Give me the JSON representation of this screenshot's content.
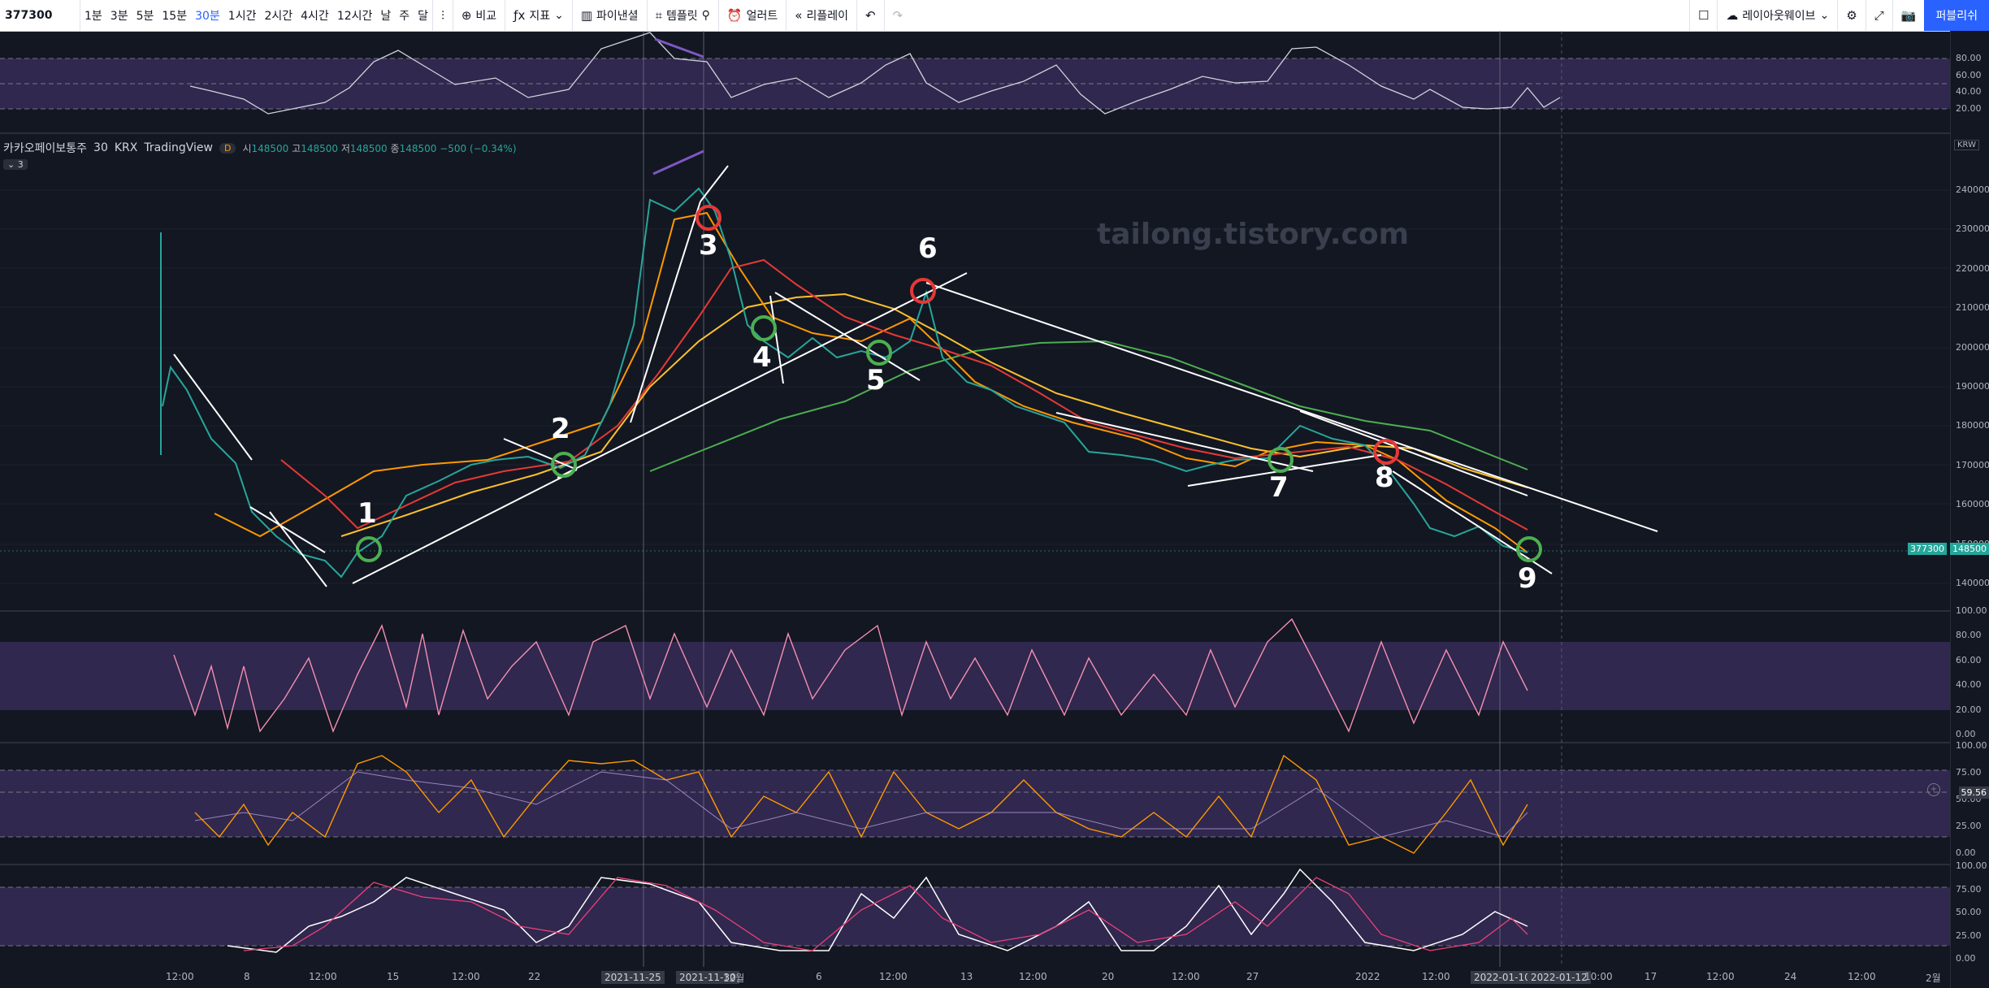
{
  "toolbar": {
    "symbol": "377300",
    "timeframes": [
      "1분",
      "3분",
      "5분",
      "15분",
      "30분",
      "1시간",
      "2시간",
      "4시간",
      "12시간",
      "날",
      "주",
      "달"
    ],
    "active_timeframe": "30분",
    "compare_label": "비교",
    "indicators_label": "지표",
    "pinescript_label": "파이낸셜",
    "templates_label": "템플릿",
    "alert_label": "얼러트",
    "replay_label": "리플레이",
    "layout_label": "레이아웃웨이브",
    "publish_label": "퍼블리쉬"
  },
  "legend": {
    "name": "카카오페이보통주",
    "interval": "30",
    "exchange": "KRX",
    "source": "TradingView",
    "badge": "D",
    "open_label": "시",
    "open": "148500",
    "high_label": "고",
    "high": "148500",
    "low_label": "저",
    "low": "148500",
    "close_label": "종",
    "close": "148500",
    "change": "−500 (−0.34%)",
    "collapse": "3"
  },
  "watermark": "tailong.tistory.com",
  "currency": "KRW",
  "price_axis": {
    "main": [
      "240000",
      "230000",
      "220000",
      "210000",
      "200000",
      "190000",
      "180000",
      "170000",
      "160000",
      "150000",
      "140000"
    ],
    "rsi_top": [
      "80.00",
      "60.00",
      "40.00",
      "20.00"
    ],
    "pane2": [
      "100.00",
      "80.00",
      "60.00",
      "40.00",
      "20.00",
      "0.00"
    ],
    "pane3": [
      "100.00",
      "75.00",
      "50.00",
      "25.00",
      "0.00"
    ],
    "pane4": [
      "100.00",
      "75.00",
      "50.00",
      "25.00",
      "0.00"
    ]
  },
  "price_labels": {
    "symbol_tag": "377300",
    "last": "148500",
    "cursor": "59.56"
  },
  "annotations": [
    "1",
    "2",
    "3",
    "4",
    "5",
    "6",
    "7",
    "8",
    "9"
  ],
  "x_axis": [
    {
      "label": "12:00"
    },
    {
      "label": "8"
    },
    {
      "label": "12:00"
    },
    {
      "label": "15"
    },
    {
      "label": "12:00"
    },
    {
      "label": "22"
    },
    {
      "label": "2021-11-25",
      "hl": true
    },
    {
      "label": "2021-11-30",
      "hl": true
    },
    {
      "label": "12월"
    },
    {
      "label": "6"
    },
    {
      "label": "12:00"
    },
    {
      "label": "13"
    },
    {
      "label": "12:00"
    },
    {
      "label": "20"
    },
    {
      "label": "12:00"
    },
    {
      "label": "27"
    },
    {
      "label": "2022"
    },
    {
      "label": "12:00"
    },
    {
      "label": "2022-01-10",
      "hl": true
    },
    {
      "label": "2022-01-12",
      "hl": true
    },
    {
      "label": "10:00"
    },
    {
      "label": "17"
    },
    {
      "label": "12:00"
    },
    {
      "label": "24"
    },
    {
      "label": "12:00"
    },
    {
      "label": "2월"
    }
  ]
}
